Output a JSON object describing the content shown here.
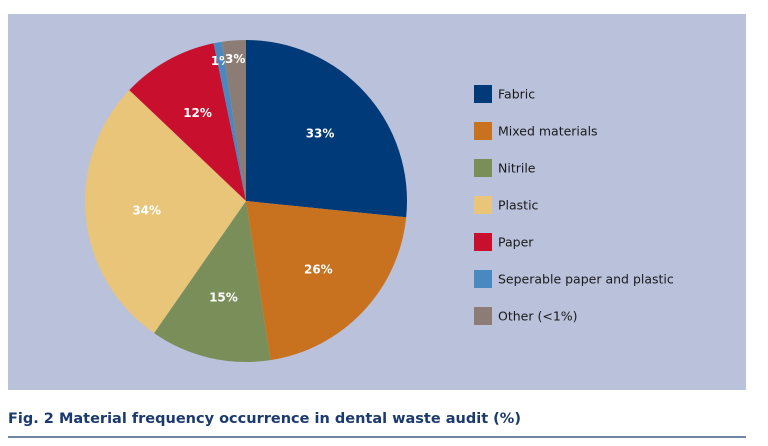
{
  "chart_data": {
    "type": "pie",
    "title": "Fig. 2  Material frequency occurrence in dental waste audit (%)",
    "categories": [
      "Fabric",
      "Mixed materials",
      "Nitrile",
      "Plastic",
      "Paper",
      "Seperable paper and plastic",
      "Other (<1%)"
    ],
    "values": [
      33,
      26,
      15,
      34,
      12,
      1,
      3
    ],
    "value_labels": [
      "33%",
      "26%",
      "15%",
      "34%",
      "12%",
      "1%",
      "3%"
    ],
    "colors": [
      "#003a78",
      "#c8711f",
      "#7a8e5a",
      "#e9c57a",
      "#c8102e",
      "#4a89c0",
      "#8c7c76"
    ],
    "legend": "right"
  }
}
